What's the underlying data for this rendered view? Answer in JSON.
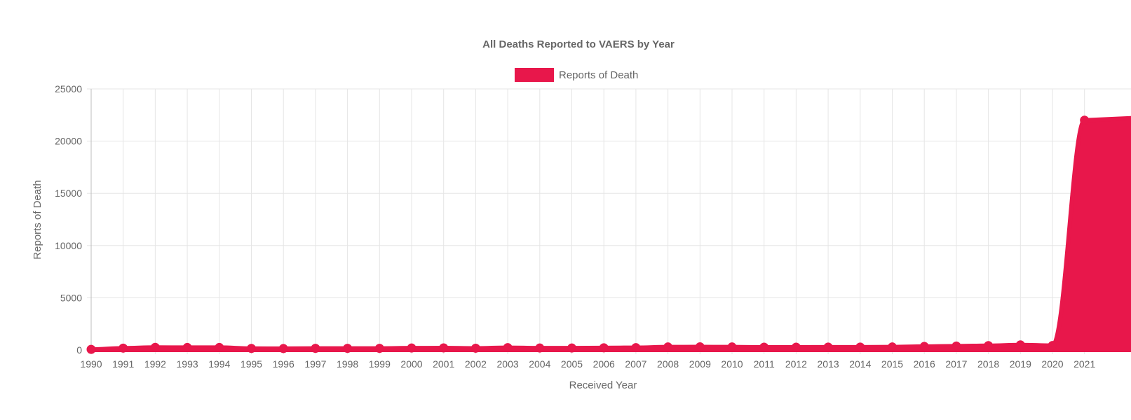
{
  "chart_data": {
    "type": "area",
    "title": "All Deaths Reported to VAERS by Year",
    "xlabel": "Received Year",
    "ylabel": "Reports of Death",
    "x": [
      "1990",
      "1991",
      "1992",
      "1993",
      "1994",
      "1995",
      "1996",
      "1997",
      "1998",
      "1999",
      "2000",
      "2001",
      "2002",
      "2003",
      "2004",
      "2005",
      "2006",
      "2007",
      "2008",
      "2009",
      "2010",
      "2011",
      "2012",
      "2013",
      "2014",
      "2015",
      "2016",
      "2017",
      "2018",
      "2019",
      "2020",
      "2021"
    ],
    "series": [
      {
        "name": "Reports of Death",
        "color": "#e8174b",
        "values": [
          60,
          180,
          250,
          240,
          240,
          150,
          140,
          160,
          160,
          160,
          190,
          200,
          170,
          230,
          190,
          190,
          210,
          230,
          290,
          300,
          290,
          270,
          270,
          280,
          280,
          290,
          340,
          380,
          420,
          490,
          430,
          22000
        ]
      }
    ],
    "ylim": [
      0,
      25000
    ],
    "yticks": [
      "0",
      "5000",
      "10000",
      "15000",
      "20000",
      "25000"
    ],
    "legend": "top-center",
    "grid": true
  }
}
